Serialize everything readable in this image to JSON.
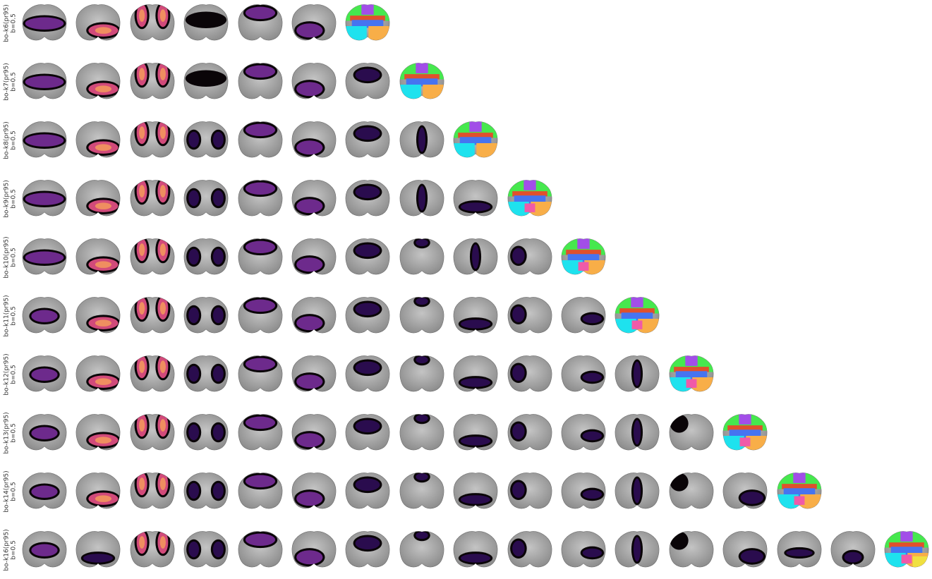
{
  "rows": [
    {
      "label": "bo-k6(pr95)",
      "sub": "b=0.5",
      "maps": [
        "h-lobe",
        "low-right",
        "lateral",
        "band-dark",
        "top-round",
        "low-left-dark",
        "labels"
      ]
    },
    {
      "label": "bo-k7(pr95)",
      "sub": "b=0.5",
      "maps": [
        "h-lobe",
        "low-right",
        "lateral",
        "band-dark",
        "top-round",
        "low-left-dark",
        "mid-top",
        "labels"
      ]
    },
    {
      "label": "bo-k8(pr95)",
      "sub": "b=0.5",
      "maps": [
        "h-lobe",
        "low-right",
        "lateral",
        "side-patches",
        "top-round",
        "low-left-dark",
        "mid-top",
        "center-strip",
        "labels"
      ]
    },
    {
      "label": "bo-k9(pr95)",
      "sub": "b=0.5",
      "maps": [
        "h-lobe",
        "low-right",
        "lateral",
        "side-patches",
        "top-round",
        "low-left-dark",
        "mid-top",
        "center-strip",
        "low-band",
        "labels"
      ]
    },
    {
      "label": "bo-k10(pr95)",
      "sub": "b=0.5",
      "maps": [
        "h-lobe",
        "low-right",
        "lateral",
        "side-patches",
        "top-round",
        "low-left-dark",
        "mid-top",
        "top-dot",
        "center-strip",
        "left-spot",
        "labels"
      ]
    },
    {
      "label": "bo-k11(pr95)",
      "sub": "b=0.5",
      "maps": [
        "center-blob",
        "low-right",
        "lateral",
        "side-patches",
        "top-round",
        "low-left-dark",
        "mid-top",
        "top-dot",
        "low-band",
        "left-spot",
        "side-streak",
        "labels"
      ]
    },
    {
      "label": "bo-k12(pr95)",
      "sub": "b=0.5",
      "maps": [
        "center-blob",
        "low-right",
        "lateral",
        "side-patches",
        "top-round",
        "low-left-dark",
        "mid-top",
        "top-dot",
        "low-band",
        "left-spot",
        "side-streak",
        "center-strip",
        "labels"
      ]
    },
    {
      "label": "bo-k13(pr95)",
      "sub": "b=0.5",
      "maps": [
        "center-blob",
        "low-right",
        "lateral",
        "side-patches",
        "top-round",
        "low-left-dark",
        "mid-top",
        "top-dot",
        "low-band",
        "left-spot",
        "side-streak",
        "center-strip",
        "corner-dark",
        "labels"
      ]
    },
    {
      "label": "bo-k14(pr95)",
      "sub": "b=0.5",
      "maps": [
        "center-blob",
        "low-right",
        "lateral",
        "side-patches",
        "top-round",
        "low-left-dark",
        "mid-top",
        "top-dot",
        "low-band",
        "left-spot",
        "side-streak",
        "center-strip",
        "corner-dark",
        "low-right-dark",
        "labels"
      ]
    },
    {
      "label": "bo-k16(pr95)",
      "sub": "b=0.5",
      "maps": [
        "center-blob",
        "low-band",
        "lateral",
        "side-patches",
        "top-round",
        "low-left-dark",
        "mid-top",
        "top-dot",
        "low-band",
        "left-spot",
        "side-streak",
        "center-strip",
        "corner-dark",
        "low-right-dark",
        "mid-band",
        "right-spot",
        "labels"
      ]
    }
  ],
  "colors": {
    "brain-gray": "#8c8c8c",
    "brain-light": "#c4c4c4",
    "mask-black": "#0a0508",
    "magma-dark": "#2a0c4e",
    "magma-mid": "#6d2a8c",
    "magma-warm": "#d14a7a",
    "magma-hot": "#f49a5c",
    "label-purple": "#a24ee8",
    "label-green": "#46e84e",
    "label-red": "#e0502c",
    "label-blue": "#4674f0",
    "label-cyan": "#1ee2ee",
    "label-orange": "#f8ae48",
    "label-pink": "#f05aa8",
    "label-yellow": "#f0e040"
  }
}
